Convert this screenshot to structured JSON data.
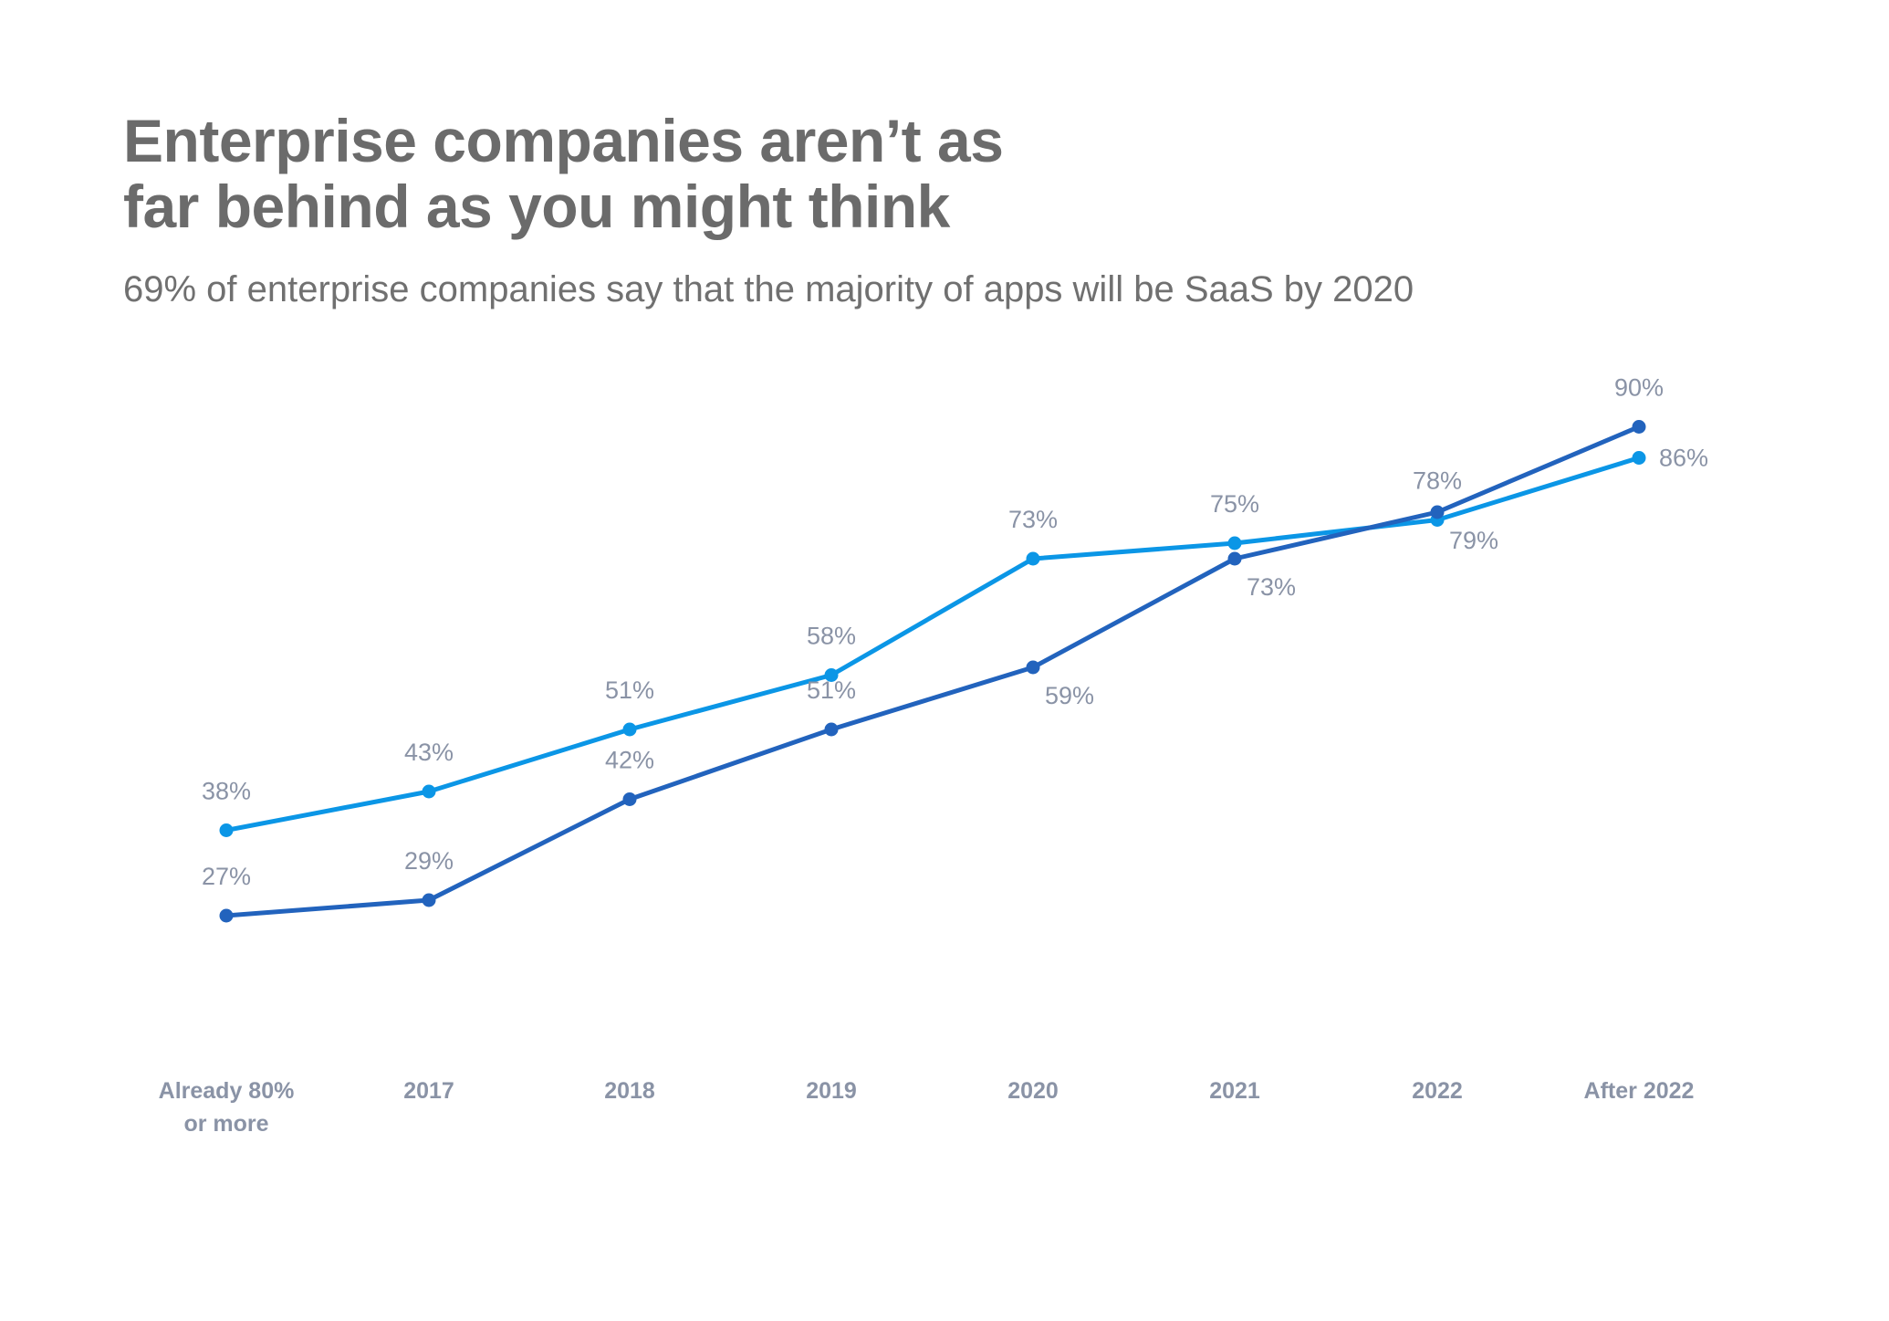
{
  "header": {
    "title_line1": "Enterprise companies aren’t as",
    "title_line2": "far behind as you might think",
    "subtitle": "69% of enterprise companies say that the majority of apps will be SaaS by 2020"
  },
  "chart_data": {
    "type": "line",
    "title": "Enterprise companies aren’t as far behind as you might think",
    "subtitle": "69% of enterprise companies say that the majority of apps will be SaaS by 2020",
    "xlabel": "",
    "ylabel": "",
    "ylim": [
      15,
      95
    ],
    "grid": false,
    "legend": "none",
    "categories": [
      [
        "Already 80%",
        "or more"
      ],
      [
        "2017"
      ],
      [
        "2018"
      ],
      [
        "2019"
      ],
      [
        "2020"
      ],
      [
        "2021"
      ],
      [
        "2022"
      ],
      [
        "After 2022"
      ]
    ],
    "series": [
      {
        "color": "#0b96e6",
        "values": [
          38,
          43,
          51,
          58,
          73,
          75,
          78,
          86
        ],
        "labels": [
          "38%",
          "43%",
          "51%",
          "58%",
          "73%",
          "75%",
          "78%",
          "86%"
        ],
        "label_positions": [
          "above",
          "above",
          "above",
          "above",
          "above",
          "above",
          "above",
          "right"
        ]
      },
      {
        "color": "#2263bd",
        "values": [
          27,
          29,
          42,
          51,
          59,
          73,
          79,
          90
        ],
        "labels": [
          "27%",
          "29%",
          "42%",
          "51%",
          "59%",
          "73%",
          "79%",
          "90%"
        ],
        "label_positions": [
          "above",
          "above",
          "above",
          "above",
          "below",
          "below",
          "below",
          "above"
        ]
      }
    ]
  }
}
